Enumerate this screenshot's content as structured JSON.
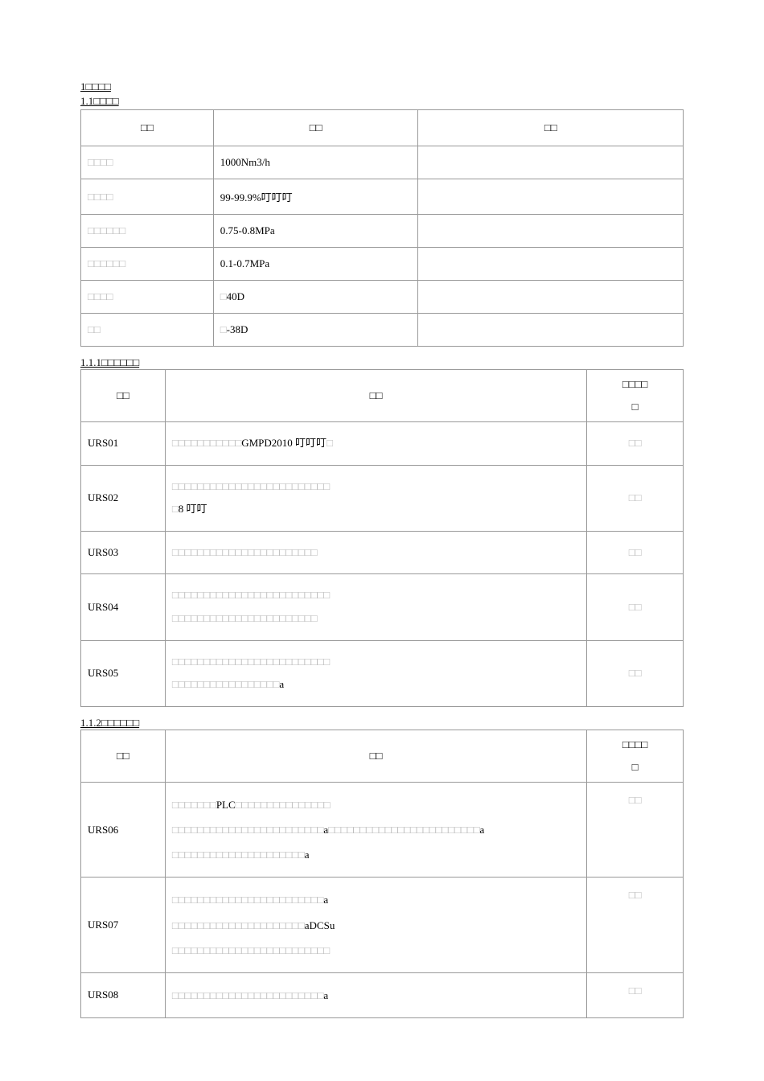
{
  "headings": {
    "h1": "1□□□□",
    "h11": "1.1□□□□",
    "h111": "1.1.1□□□□□□",
    "h112": "1.1.2□□□□□□"
  },
  "table1": {
    "headers": [
      "□□",
      "□□",
      "□□"
    ],
    "rows": [
      [
        "□□□□",
        "1000Nm3/h",
        ""
      ],
      [
        "□□□□",
        "99-99.9%叮叮叮",
        ""
      ],
      [
        "□□□□□□",
        "0.75-0.8MPa",
        ""
      ],
      [
        "□□□□□□",
        "0.1-0.7MPa",
        ""
      ],
      [
        "□□□□",
        "□40D",
        ""
      ],
      [
        "□□",
        "□-38D",
        ""
      ]
    ]
  },
  "table2": {
    "headers": {
      "col1": "□□",
      "col2": "□□",
      "col3_top": "□□□□",
      "col3_bot": "□"
    },
    "rows": [
      {
        "code": "URS01",
        "desc": "□□□□□□□□□□□GMPD2010 叮叮叮□",
        "comp": "□□"
      },
      {
        "code": "URS02",
        "desc": "□□□□□□□□□□□□□□□□□□□□□□□□□\n□8 叮叮",
        "comp": "□□"
      },
      {
        "code": "URS03",
        "desc": "□□□□□□□□□□□□□□□□□□□□□□□",
        "comp": "□□"
      },
      {
        "code": "URS04",
        "desc": "□□□□□□□□□□□□□□□□□□□□□□□□□\n□□□□□□□□□□□□□□□□□□□□□□□",
        "comp": "□□"
      },
      {
        "code": "URS05",
        "desc": "□□□□□□□□□□□□□□□□□□□□□□□□□\n□□□□□□□□□□□□□□□□□a",
        "comp": "□□"
      }
    ]
  },
  "table3": {
    "headers": {
      "col1": "□□",
      "col2": "□□",
      "col3_top": "□□□□",
      "col3_bot": "□"
    },
    "rows": [
      {
        "code": "URS06",
        "desc": "□□□□□□□PLC□□□□□□□□□□□□□□□\n□□□□□□□□□□□□□□□□□□□□□□□□a□□□□□□□□□□□□□□□□□□□□□□□□a\n□□□□□□□□□□□□□□□□□□□□□a",
        "comp": "□□"
      },
      {
        "code": "URS07",
        "desc": "□□□□□□□□□□□□□□□□□□□□□□□□a\n□□□□□□□□□□□□□□□□□□□□□aDCSu\n□□□□□□□□□□□□□□□□□□□□□□□□□",
        "comp": "□□"
      },
      {
        "code": "URS08",
        "desc": "□□□□□□□□□□□□□□□□□□□□□□□□a",
        "comp": "□□"
      }
    ]
  }
}
